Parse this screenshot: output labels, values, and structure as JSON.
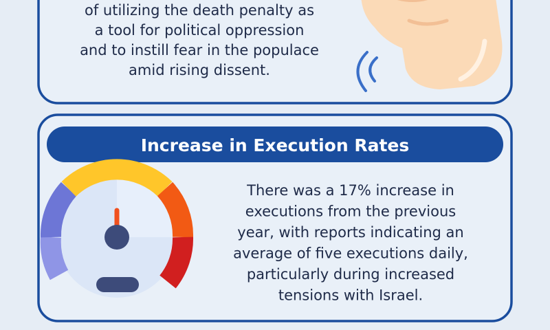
{
  "panels": [
    {
      "lines": [
        "of utilizing the death penalty as",
        "a tool for political oppression",
        "and to instill fear in the populace",
        "amid rising dissent."
      ]
    },
    {
      "heading": "Increase in Execution Rates",
      "lines": [
        "There was a 17% increase in",
        "executions from the previous",
        "year, with reports indicating an",
        "average of five executions daily,",
        "particularly during increased",
        "tensions with Israel."
      ]
    }
  ]
}
